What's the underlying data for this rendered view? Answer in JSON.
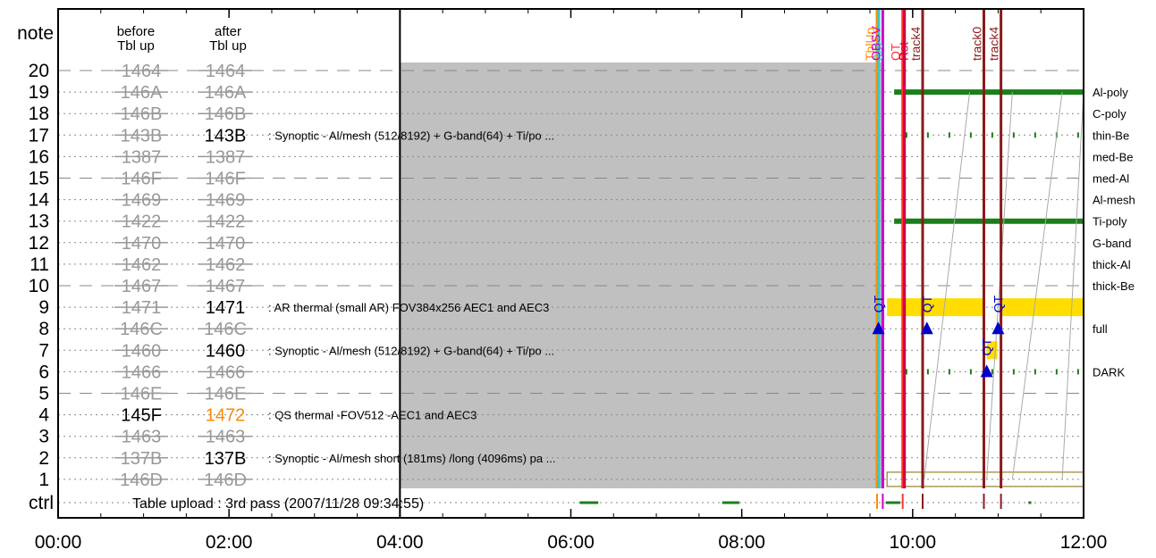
{
  "chart_data": {
    "type": "timeline",
    "header": {
      "note": "note",
      "ctrl": "ctrl",
      "before": [
        "before",
        "Tbl up"
      ],
      "after": [
        "after",
        "Tbl up"
      ]
    },
    "xlim": [
      "00:00",
      "12:00"
    ],
    "x_ticks": [
      "00:00",
      "02:00",
      "04:00",
      "06:00",
      "08:00",
      "10:00",
      "12:00"
    ],
    "rows": [
      {
        "n": "20",
        "before": "1464",
        "after": "1464",
        "b_struck": true,
        "a_struck": true,
        "a_color": "#999999",
        "desc": ""
      },
      {
        "n": "19",
        "before": "146A",
        "after": "146A",
        "b_struck": true,
        "a_struck": true,
        "a_color": "#999999",
        "desc": ""
      },
      {
        "n": "18",
        "before": "146B",
        "after": "146B",
        "b_struck": true,
        "a_struck": true,
        "a_color": "#999999",
        "desc": ""
      },
      {
        "n": "17",
        "before": "143B",
        "after": "143B",
        "b_struck": true,
        "a_struck": false,
        "a_color": "#000000",
        "desc": ": Synoptic - Al/mesh (512/8192) + G-band(64) + Ti/po ..."
      },
      {
        "n": "16",
        "before": "1387",
        "after": "1387",
        "b_struck": true,
        "a_struck": true,
        "a_color": "#999999",
        "desc": ""
      },
      {
        "n": "15",
        "before": "146F",
        "after": "146F",
        "b_struck": true,
        "a_struck": true,
        "a_color": "#999999",
        "desc": ""
      },
      {
        "n": "14",
        "before": "1469",
        "after": "1469",
        "b_struck": true,
        "a_struck": true,
        "a_color": "#999999",
        "desc": ""
      },
      {
        "n": "13",
        "before": "1422",
        "after": "1422",
        "b_struck": true,
        "a_struck": true,
        "a_color": "#999999",
        "desc": ""
      },
      {
        "n": "12",
        "before": "1470",
        "after": "1470",
        "b_struck": true,
        "a_struck": true,
        "a_color": "#999999",
        "desc": ""
      },
      {
        "n": "11",
        "before": "1462",
        "after": "1462",
        "b_struck": true,
        "a_struck": true,
        "a_color": "#999999",
        "desc": ""
      },
      {
        "n": "10",
        "before": "1467",
        "after": "1467",
        "b_struck": true,
        "a_struck": true,
        "a_color": "#999999",
        "desc": ""
      },
      {
        "n": "9",
        "before": "1471",
        "after": "1471",
        "b_struck": true,
        "a_struck": false,
        "a_color": "#000000",
        "desc": ": AR thermal (small AR) FOV384x256 AEC1 and AEC3"
      },
      {
        "n": "8",
        "before": "146C",
        "after": "146C",
        "b_struck": true,
        "a_struck": true,
        "a_color": "#999999",
        "desc": ""
      },
      {
        "n": "7",
        "before": "1460",
        "after": "1460",
        "b_struck": true,
        "a_struck": false,
        "a_color": "#000000",
        "desc": ": Synoptic - Al/mesh (512/8192) + G-band(64) + Ti/po ..."
      },
      {
        "n": "6",
        "before": "1466",
        "after": "1466",
        "b_struck": true,
        "a_struck": true,
        "a_color": "#999999",
        "desc": ""
      },
      {
        "n": "5",
        "before": "146E",
        "after": "146E",
        "b_struck": true,
        "a_struck": true,
        "a_color": "#999999",
        "desc": ""
      },
      {
        "n": "4",
        "before": "145F",
        "after": "1472",
        "b_struck": false,
        "a_struck": false,
        "a_color": "#ff8800",
        "desc": ": QS thermal -FOV512 -AEC1 and AEC3"
      },
      {
        "n": "3",
        "before": "1463",
        "after": "1463",
        "b_struck": true,
        "a_struck": true,
        "a_color": "#999999",
        "desc": ""
      },
      {
        "n": "2",
        "before": "137B",
        "after": "137B",
        "b_struck": true,
        "a_struck": false,
        "a_color": "#000000",
        "desc": ": Synoptic - Al/mesh short (181ms) /long (4096ms) pa ..."
      },
      {
        "n": "1",
        "before": "146D",
        "after": "146D",
        "b_struck": true,
        "a_struck": true,
        "a_color": "#999999",
        "desc": ""
      }
    ],
    "ctrl_text": "Table upload : 3rd pass (2007/11/28 09:34:55)",
    "filters": [
      "Al-poly",
      "C-poly",
      "thin-Be",
      "med-Be",
      "med-Al",
      "Al-mesh",
      "Ti-poly",
      "G-band",
      "thick-Al",
      "thick-Be",
      "full",
      "DARK"
    ],
    "gray_period": [
      "04:00",
      "09:40"
    ],
    "vertical_markers": [
      {
        "time": "09:35",
        "labels": [
          "TblUp",
          "3rd"
        ],
        "colors": [
          "#ff8c00",
          "#33cccc"
        ]
      },
      {
        "time": "09:39",
        "labels": [
          "OBSV"
        ],
        "colors": [
          "#cc00cc"
        ]
      },
      {
        "time": "09:53",
        "labels": [
          "QT",
          "Rst"
        ],
        "colors": [
          "#ff3333",
          "#cc0044"
        ]
      },
      {
        "time": "10:07",
        "labels": [
          "track4"
        ],
        "colors": [
          "#8b1a1a"
        ]
      },
      {
        "time": "10:50",
        "labels": [
          "track0"
        ],
        "colors": [
          "#8b1a1a"
        ]
      },
      {
        "time": "11:02",
        "labels": [
          "track4"
        ],
        "colors": [
          "#8b1a1a"
        ]
      }
    ],
    "qt_markers": [
      {
        "time": "09:36",
        "label": "QT",
        "row": "8"
      },
      {
        "time": "10:10",
        "label": "QT",
        "row": "8"
      },
      {
        "time": "10:52",
        "label": "QT",
        "row": "6"
      },
      {
        "time": "11:00",
        "label": "QT",
        "row": "8"
      }
    ],
    "colors": {
      "accent": "#0000cc",
      "gray": "#c0c0c0",
      "filter_bar": "#1a7f1a",
      "yellow": "#ffdd00"
    }
  }
}
